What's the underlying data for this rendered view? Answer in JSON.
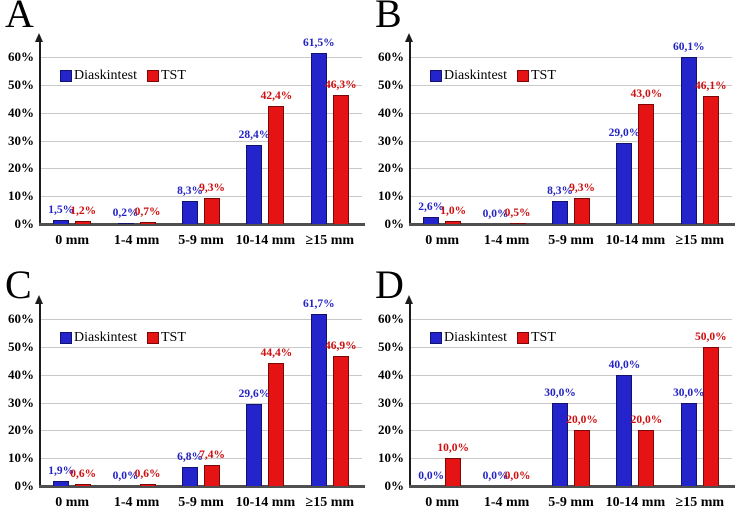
{
  "figure": {
    "y_ticks": [
      "0%",
      "10%",
      "20%",
      "30%",
      "40%",
      "50%",
      "60%"
    ],
    "colors": {
      "diaskintest_fill": "#2424cc",
      "diaskintest_border": "#12126e",
      "diaskintest_text": "#2323c4",
      "tst_fill": "#e51313",
      "tst_border": "#7d0707",
      "tst_text": "#cf0f0f",
      "gridline": "#c9c9c9",
      "axis": "#1c1c1c",
      "baseline": "#4f4f4f",
      "text": "#000000",
      "background": "#ffffff"
    }
  },
  "chart_data": [
    {
      "type": "bar",
      "panel": "A",
      "categories": [
        "0 mm",
        "1-4 mm",
        "5-9 mm",
        "10-14 mm",
        "≥15 mm"
      ],
      "series": [
        {
          "name": "Diaskintest",
          "values": [
            1.5,
            0.2,
            8.3,
            28.4,
            61.5
          ],
          "labels": [
            "1,5%",
            "0,2%",
            "8,3%",
            "28,4%",
            "61,5%"
          ]
        },
        {
          "name": "TST",
          "values": [
            1.2,
            0.7,
            9.3,
            42.4,
            46.3
          ],
          "labels": [
            "1,2%",
            "0,7%",
            "9,3%",
            "42,4%",
            "46,3%"
          ]
        }
      ],
      "ylabel": "",
      "xlabel": "",
      "ylim": [
        0,
        60
      ],
      "yticks_percent": [
        0,
        10,
        20,
        30,
        40,
        50,
        60
      ],
      "grid": true,
      "legend_position": "upper-left"
    },
    {
      "type": "bar",
      "panel": "B",
      "categories": [
        "0 mm",
        "1-4 mm",
        "5-9 mm",
        "10-14 mm",
        "≥15 mm"
      ],
      "series": [
        {
          "name": "Diaskintest",
          "values": [
            2.6,
            0.0,
            8.3,
            29.0,
            60.1
          ],
          "labels": [
            "2,6%",
            "0,0%",
            "8,3%",
            "29,0%",
            "60,1%"
          ]
        },
        {
          "name": "TST",
          "values": [
            1.0,
            0.5,
            9.3,
            43.0,
            46.1
          ],
          "labels": [
            "1,0%",
            "0,5%",
            "9,3%",
            "43,0%",
            "46,1%"
          ]
        }
      ],
      "ylabel": "",
      "xlabel": "",
      "ylim": [
        0,
        60
      ],
      "yticks_percent": [
        0,
        10,
        20,
        30,
        40,
        50,
        60
      ],
      "grid": true,
      "legend_position": "upper-left"
    },
    {
      "type": "bar",
      "panel": "C",
      "categories": [
        "0 mm",
        "1-4 mm",
        "5-9 mm",
        "10-14 mm",
        "≥15 mm"
      ],
      "series": [
        {
          "name": "Diaskintest",
          "values": [
            1.9,
            0.0,
            6.8,
            29.6,
            61.7
          ],
          "labels": [
            "1,9%",
            "0,0%",
            "6,8%",
            "29,6%",
            "61,7%"
          ]
        },
        {
          "name": "TST",
          "values": [
            0.6,
            0.6,
            7.4,
            44.4,
            46.9
          ],
          "labels": [
            "0,6%",
            "0,6%",
            "7,4%",
            "44,4%",
            "46,9%"
          ]
        }
      ],
      "ylabel": "",
      "xlabel": "",
      "ylim": [
        0,
        60
      ],
      "yticks_percent": [
        0,
        10,
        20,
        30,
        40,
        50,
        60
      ],
      "grid": true,
      "legend_position": "upper-left"
    },
    {
      "type": "bar",
      "panel": "D",
      "categories": [
        "0 mm",
        "1-4 mm",
        "5-9 mm",
        "10-14 mm",
        "≥15 mm"
      ],
      "series": [
        {
          "name": "Diaskintest",
          "values": [
            0.0,
            0.0,
            30.0,
            40.0,
            30.0
          ],
          "labels": [
            "0,0%",
            "0,0%",
            "30,0%",
            "40,0%",
            "30,0%"
          ]
        },
        {
          "name": "TST",
          "values": [
            10.0,
            0.0,
            20.0,
            20.0,
            50.0
          ],
          "labels": [
            "10,0%",
            "0,0%",
            "20,0%",
            "20,0%",
            "50,0%"
          ]
        }
      ],
      "ylabel": "",
      "xlabel": "",
      "ylim": [
        0,
        60
      ],
      "yticks_percent": [
        0,
        10,
        20,
        30,
        40,
        50,
        60
      ],
      "grid": true,
      "legend_position": "upper-left"
    }
  ]
}
